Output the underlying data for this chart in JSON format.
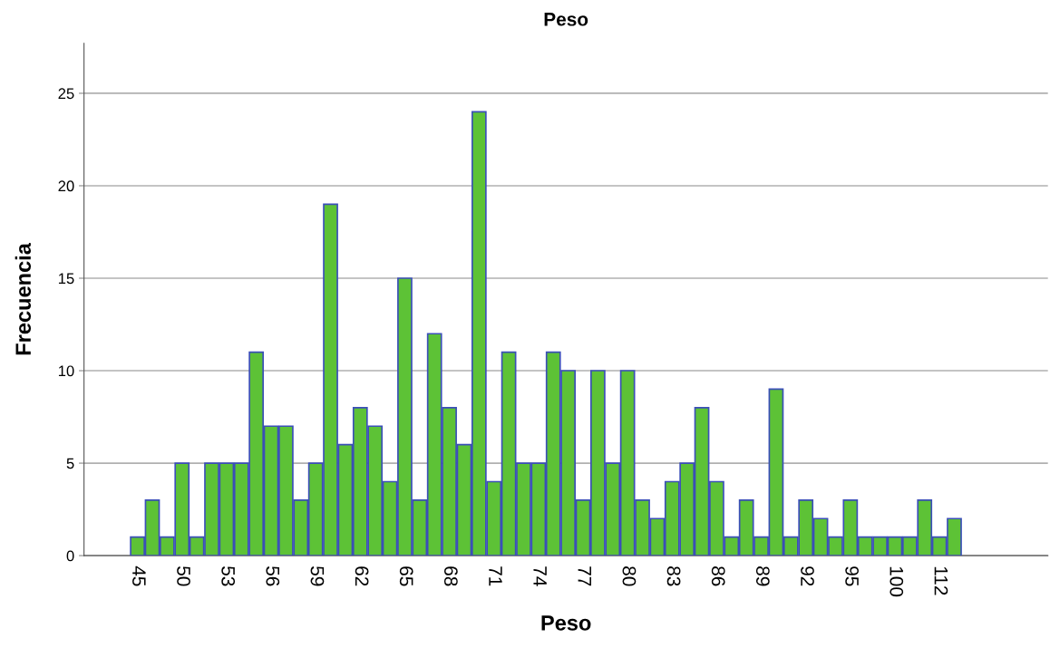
{
  "chart_data": {
    "type": "bar",
    "title": "Peso",
    "xlabel": "Peso",
    "ylabel": "Frecuencia",
    "categories": [
      "45",
      null,
      null,
      "50",
      null,
      null,
      "53",
      null,
      null,
      "56",
      null,
      null,
      "59",
      null,
      null,
      "62",
      null,
      null,
      "65",
      null,
      null,
      "68",
      null,
      null,
      "71",
      null,
      null,
      "74",
      null,
      null,
      "77",
      null,
      null,
      "80",
      null,
      null,
      "83",
      null,
      null,
      "86",
      null,
      null,
      "89",
      null,
      null,
      "92",
      null,
      null,
      "95",
      null,
      null,
      "100",
      null,
      null,
      "112",
      null
    ],
    "values": [
      1,
      3,
      1,
      5,
      1,
      5,
      5,
      5,
      11,
      7,
      7,
      3,
      5,
      19,
      6,
      8,
      7,
      4,
      15,
      3,
      12,
      8,
      6,
      24,
      4,
      11,
      5,
      5,
      11,
      10,
      3,
      10,
      5,
      10,
      3,
      2,
      4,
      5,
      8,
      4,
      1,
      3,
      1,
      9,
      1,
      3,
      2,
      1,
      3,
      1,
      1,
      1,
      1,
      3,
      1,
      2
    ],
    "color": "#5dc236",
    "ylim": [
      0,
      27.7
    ],
    "yticks": [
      0,
      5,
      10,
      15,
      20,
      25
    ],
    "grid": "y"
  }
}
